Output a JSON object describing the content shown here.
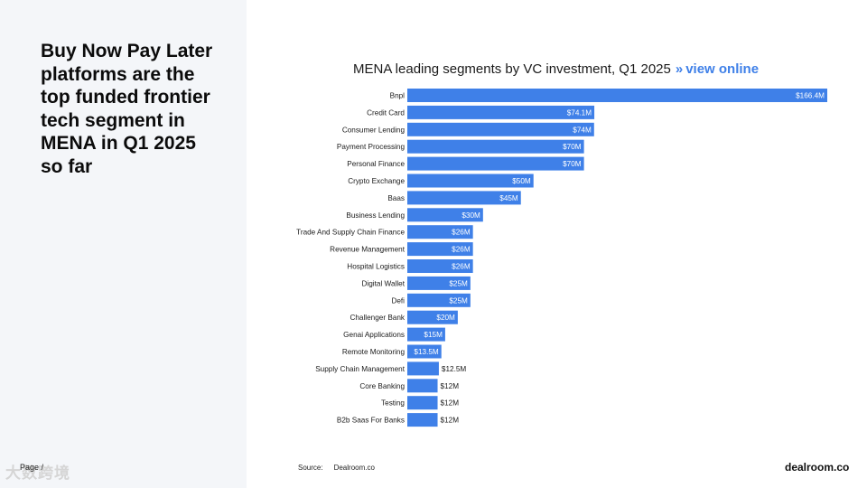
{
  "headline": "Buy Now Pay Later platforms are the top funded frontier tech segment in MENA in Q1 2025 so far",
  "chart_title": "MENA leading segments by VC investment,  Q1 2025",
  "chart_title_sep": "»",
  "chart_link": "view online",
  "source_label": "Source:",
  "source_value": "Dealroom.co",
  "brand": "dealroom.co",
  "page_label": "Page / ",
  "watermark": "大数跨境",
  "colors": {
    "bar": "#3f80e8",
    "left_panel": "#f4f6f9",
    "link": "#3f80e8"
  },
  "chart_data": {
    "type": "bar",
    "orientation": "horizontal",
    "title": "MENA leading segments by VC investment,  Q1 2025",
    "xlabel": "",
    "ylabel": "",
    "xlim": [
      0,
      166.4
    ],
    "grid": false,
    "categories": [
      "Bnpl",
      "Credit Card",
      "Consumer Lending",
      "Payment Processing",
      "Personal Finance",
      "Crypto Exchange",
      "Baas",
      "Business Lending",
      "Trade And Supply Chain Finance",
      "Revenue Management",
      "Hospital Logistics",
      "Digital Wallet",
      "Defi",
      "Challenger Bank",
      "Genai Applications",
      "Remote Monitoring",
      "Supply Chain Management",
      "Core Banking",
      "Testing",
      "B2b Saas For Banks"
    ],
    "values": [
      166.4,
      74.1,
      74,
      70,
      70,
      50,
      45,
      30,
      26,
      26,
      26,
      25,
      25,
      20,
      15,
      13.5,
      12.5,
      12,
      12,
      12
    ],
    "labels": [
      "$166.4M",
      "$74.1M",
      "$74M",
      "$70M",
      "$70M",
      "$50M",
      "$45M",
      "$30M",
      "$26M",
      "$26M",
      "$26M",
      "$25M",
      "$25M",
      "$20M",
      "$15M",
      "$13.5M",
      "$12.5M",
      "$12M",
      "$12M",
      "$12M"
    ]
  }
}
